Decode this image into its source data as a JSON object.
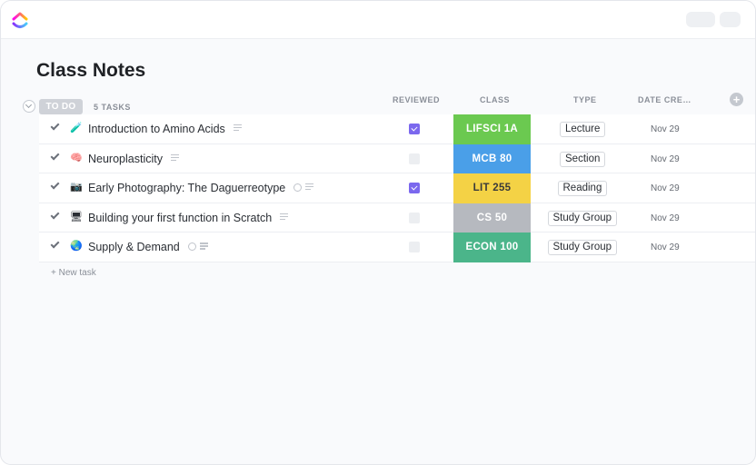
{
  "colors": {
    "accent": "#7b68ee",
    "lifsci": "#6bc950",
    "mcb": "#4a9fe8",
    "lit": "#f4d245",
    "cs": "#b6b9bf",
    "econ": "#4bb58a"
  },
  "icons": [
    "app-logo-icon",
    "chevron-down-icon",
    "plus-icon",
    "check-icon",
    "attachment-icon",
    "description-icon"
  ],
  "page": {
    "title": "Class Notes"
  },
  "group": {
    "status": "TO DO",
    "count": "5 TASKS"
  },
  "columns": {
    "reviewed": "REVIEWED",
    "class": "CLASS",
    "type": "TYPE",
    "date": "DATE CREATED"
  },
  "tasks": [
    {
      "emoji": "🧪",
      "name": "Introduction to Amino Acids",
      "reviewed": true,
      "class": "LIFSCI 1A",
      "class_color": "#6bc950",
      "class_text": "#ffffff",
      "type": "Lecture",
      "date": "Nov 29",
      "attachment": false
    },
    {
      "emoji": "🧠",
      "name": "Neuroplasticity",
      "reviewed": false,
      "class": "MCB 80",
      "class_color": "#4a9fe8",
      "class_text": "#ffffff",
      "type": "Section",
      "date": "Nov 29",
      "attachment": false
    },
    {
      "emoji": "📷",
      "name": "Early Photography: The Daguerreotype",
      "reviewed": true,
      "class": "LIT 255",
      "class_color": "#f4d245",
      "class_text": "#3a3a3a",
      "type": "Reading",
      "date": "Nov 29",
      "attachment": true
    },
    {
      "emoji": "🖥",
      "name": "Building your first function in Scratch",
      "reviewed": false,
      "class": "CS 50",
      "class_color": "#b6b9bf",
      "class_text": "#ffffff",
      "type": "Study Group",
      "date": "Nov 29",
      "attachment": false
    },
    {
      "emoji": "🌏",
      "name": "Supply & Demand",
      "reviewed": false,
      "class": "ECON 100",
      "class_color": "#4bb58a",
      "class_text": "#ffffff",
      "type": "Study Group",
      "date": "Nov 29",
      "attachment": true
    }
  ],
  "new_task_label": "+ New task"
}
